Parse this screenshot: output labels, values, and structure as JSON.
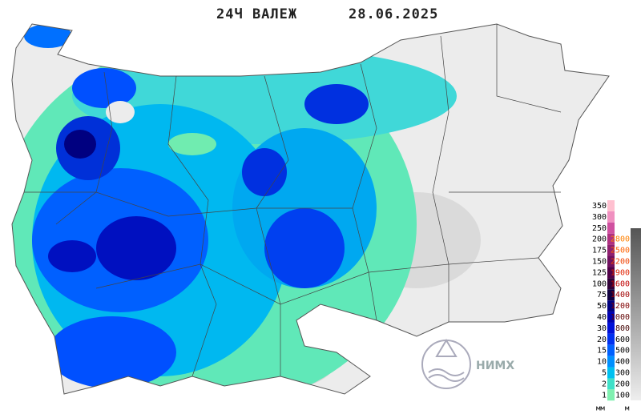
{
  "header": {
    "title": "24Ч ВАЛЕЖ",
    "date": "28.06.2025"
  },
  "legend": {
    "precipitation": {
      "unit": "мм",
      "items": [
        {
          "value": 350,
          "color": "#ffc0d0"
        },
        {
          "value": 300,
          "color": "#f090c0"
        },
        {
          "value": 250,
          "color": "#d050a0"
        },
        {
          "value": 200,
          "color": "#b03080"
        },
        {
          "value": 175,
          "color": "#902070"
        },
        {
          "value": 150,
          "color": "#701060"
        },
        {
          "value": 125,
          "color": "#500048"
        },
        {
          "value": 100,
          "color": "#300038"
        },
        {
          "value": 75,
          "color": "#100040"
        },
        {
          "value": 50,
          "color": "#000080"
        },
        {
          "value": 40,
          "color": "#0000b0"
        },
        {
          "value": 30,
          "color": "#0010d8"
        },
        {
          "value": 20,
          "color": "#0030f0"
        },
        {
          "value": 15,
          "color": "#0060ff"
        },
        {
          "value": 10,
          "color": "#0090ff"
        },
        {
          "value": 5,
          "color": "#00c0f0"
        },
        {
          "value": 2,
          "color": "#40e0c8"
        },
        {
          "value": 1,
          "color": "#80f0b0"
        }
      ]
    },
    "elevation": {
      "unit": "м",
      "items": [
        {
          "value": 2800,
          "color": "#ff8000"
        },
        {
          "value": 2500,
          "color": "#ff6000"
        },
        {
          "value": 2200,
          "color": "#f04000"
        },
        {
          "value": 1900,
          "color": "#e02000"
        },
        {
          "value": 1600,
          "color": "#c00000"
        },
        {
          "value": 1400,
          "color": "#a00000"
        },
        {
          "value": 1200,
          "color": "#800000"
        },
        {
          "value": 1000,
          "color": "#600000"
        },
        {
          "value": 800,
          "color": "#400000"
        },
        {
          "value": 600,
          "color": "#000000"
        },
        {
          "value": 500,
          "color": "#000000"
        },
        {
          "value": 400,
          "color": "#000000"
        },
        {
          "value": 300,
          "color": "#000000"
        },
        {
          "value": 200,
          "color": "#000000"
        },
        {
          "value": 100,
          "color": "#000000"
        }
      ]
    }
  },
  "logo": {
    "text": "НИМХ"
  }
}
